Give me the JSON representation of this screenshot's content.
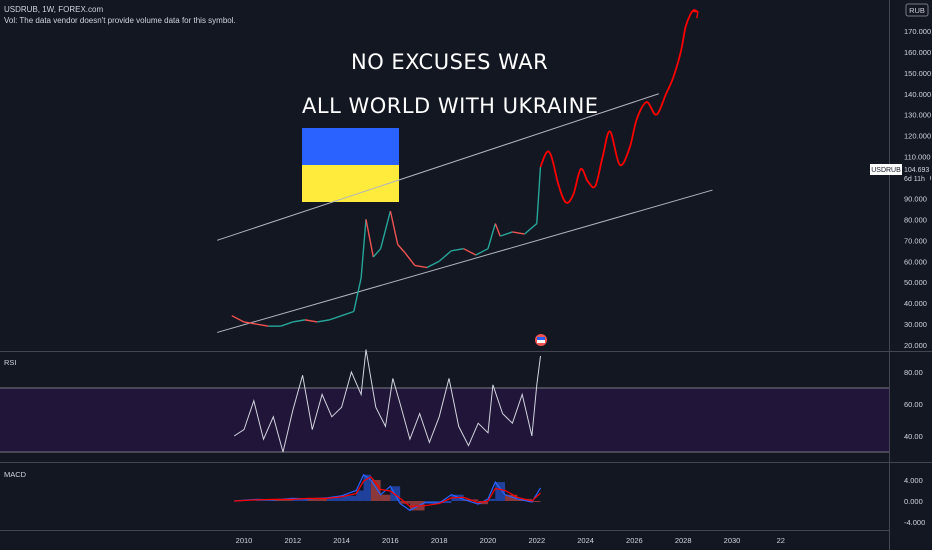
{
  "header": {
    "symbol_line": "USDRUB, 1W, FOREX.com",
    "vol_note": "Vol: The data vendor doesn't provide volume data for this symbol."
  },
  "annotations": {
    "line1": "NO EXCUSES WAR",
    "line2": "ALL WORLD WITH UKRAINE"
  },
  "currency_badge": "RUB",
  "price_label": {
    "symbol": "USDRUB",
    "price": "104.693",
    "countdown": "6d 11h"
  },
  "rsi_title": "RSI",
  "macd_title": "MACD",
  "colors": {
    "background": "#131722",
    "up": "#26a69a",
    "down": "#ef5350",
    "projection": "#ff0000",
    "channel": "#b2b5be",
    "rsi_line": "#d1d4dc",
    "rsi_band": "#21153a",
    "macd_line": "#2962ff",
    "signal_line": "#ff0000",
    "flag_blue": "#2962ff",
    "flag_yellow": "#ffeb3b"
  },
  "chart_data": [
    {
      "type": "line",
      "title": "USDRUB, 1W, FOREX.com",
      "x_ticks": [
        "2010",
        "2012",
        "2014",
        "2016",
        "2018",
        "2020",
        "2022",
        "2024",
        "2026",
        "2028",
        "2030",
        "22"
      ],
      "y_ticks": [
        "20.000",
        "30.000",
        "40.000",
        "50.000",
        "60.000",
        "70.000",
        "80.000",
        "90.000",
        "100.000",
        "110.000",
        "120.000",
        "130.000",
        "140.000",
        "150.000",
        "160.000",
        "170.000"
      ],
      "ylim": [
        20,
        180
      ],
      "series": [
        {
          "name": "USDRUB",
          "x": [
            2009.5,
            2010.0,
            2010.5,
            2011.0,
            2011.5,
            2012.0,
            2012.5,
            2013.0,
            2013.5,
            2014.0,
            2014.5,
            2014.8,
            2015.0,
            2015.3,
            2015.6,
            2016.0,
            2016.3,
            2016.6,
            2017.0,
            2017.5,
            2018.0,
            2018.5,
            2019.0,
            2019.5,
            2020.0,
            2020.3,
            2020.5,
            2021.0,
            2021.5,
            2022.0,
            2022.15
          ],
          "values": [
            34,
            31,
            30,
            29,
            29,
            31,
            32,
            31,
            32,
            34,
            36,
            52,
            80,
            62,
            66,
            84,
            68,
            64,
            58,
            57,
            60,
            65,
            66,
            63,
            66,
            78,
            72,
            74,
            73,
            78,
            105
          ]
        },
        {
          "name": "Projection",
          "x": [
            2022.15,
            2022.4,
            2022.6,
            2022.9,
            2023.2,
            2023.5,
            2023.8,
            2024.1,
            2024.4,
            2024.7,
            2025.0,
            2025.4,
            2025.8,
            2026.1,
            2026.5,
            2026.9,
            2027.3,
            2027.6,
            2027.9,
            2028.1,
            2028.3,
            2028.45,
            2028.6
          ],
          "values": [
            105,
            112,
            110,
            96,
            88,
            92,
            104,
            98,
            96,
            110,
            122,
            106,
            114,
            128,
            136,
            130,
            140,
            148,
            160,
            172,
            178,
            180,
            179
          ]
        }
      ],
      "channel": {
        "upper": {
          "x": [
            2008.9,
            2027.0
          ],
          "values": [
            70,
            140
          ]
        },
        "lower": {
          "x": [
            2008.9,
            2029.2
          ],
          "values": [
            26,
            94
          ]
        }
      }
    },
    {
      "type": "line",
      "title": "RSI",
      "y_ticks": [
        "40.00",
        "60.00",
        "80.00"
      ],
      "ylim": [
        25,
        95
      ],
      "series": [
        {
          "name": "RSI",
          "x": [
            2009.6,
            2010.0,
            2010.4,
            2010.8,
            2011.2,
            2011.6,
            2012.0,
            2012.4,
            2012.8,
            2013.2,
            2013.6,
            2014.0,
            2014.4,
            2014.8,
            2015.0,
            2015.4,
            2015.8,
            2016.1,
            2016.4,
            2016.8,
            2017.2,
            2017.6,
            2018.0,
            2018.4,
            2018.8,
            2019.2,
            2019.6,
            2020.0,
            2020.2,
            2020.6,
            2021.0,
            2021.4,
            2021.8,
            2022.0,
            2022.15
          ],
          "values": [
            40,
            44,
            62,
            38,
            52,
            30,
            56,
            78,
            44,
            66,
            52,
            58,
            80,
            66,
            94,
            58,
            46,
            76,
            60,
            38,
            54,
            36,
            52,
            76,
            46,
            34,
            48,
            42,
            72,
            54,
            48,
            66,
            40,
            72,
            90
          ]
        }
      ],
      "levels": [
        70,
        30
      ]
    },
    {
      "type": "line",
      "title": "MACD",
      "y_ticks": [
        "-4.000",
        "0.000",
        "4.000"
      ],
      "ylim": [
        -6,
        6
      ],
      "series": [
        {
          "name": "MACD",
          "x": [
            2009.6,
            2010.5,
            2011.2,
            2012.0,
            2012.6,
            2013.4,
            2014.0,
            2014.6,
            2014.9,
            2015.2,
            2015.6,
            2016.0,
            2016.4,
            2016.8,
            2017.4,
            2018.0,
            2018.5,
            2019.0,
            2019.6,
            2020.0,
            2020.3,
            2020.7,
            2021.2,
            2021.8,
            2022.15
          ],
          "values": [
            0.0,
            0.3,
            0.2,
            0.5,
            0.4,
            0.6,
            1.0,
            2.0,
            5.0,
            4.0,
            1.2,
            2.8,
            -0.5,
            -1.8,
            -0.3,
            -0.4,
            1.2,
            0.3,
            -0.6,
            0.4,
            3.6,
            1.2,
            0.4,
            -0.2,
            2.5
          ]
        },
        {
          "name": "Signal",
          "x": [
            2009.6,
            2010.5,
            2011.2,
            2012.0,
            2012.6,
            2013.4,
            2014.0,
            2014.6,
            2014.9,
            2015.2,
            2015.6,
            2016.0,
            2016.4,
            2016.8,
            2017.4,
            2018.0,
            2018.5,
            2019.0,
            2019.6,
            2020.0,
            2020.3,
            2020.7,
            2021.2,
            2021.8,
            2022.15
          ],
          "values": [
            0.0,
            0.2,
            0.3,
            0.3,
            0.5,
            0.5,
            0.8,
            1.4,
            3.8,
            4.6,
            2.2,
            1.9,
            0.5,
            -1.0,
            -0.9,
            -0.5,
            0.6,
            0.7,
            -0.3,
            0.0,
            2.4,
            2.0,
            0.7,
            0.0,
            1.5
          ]
        }
      ]
    }
  ]
}
